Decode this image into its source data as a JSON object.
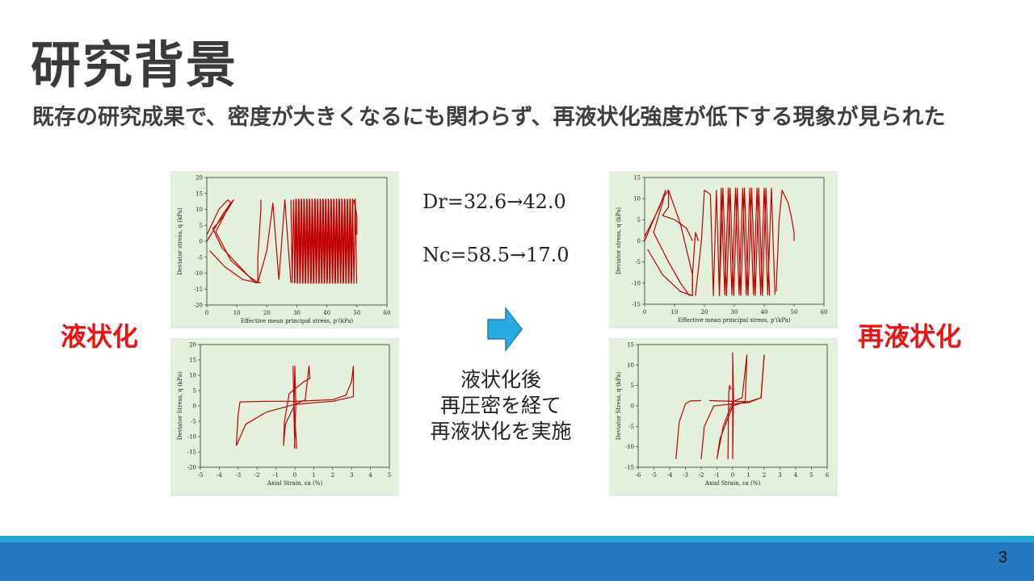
{
  "slide": {
    "title": "研究背景",
    "body": "既存の研究成果で、密度が大きくなるにも関わらず、再液状化強度が低下する現象が見られた",
    "left_label": "液状化",
    "right_label": "再液状化",
    "dr_text": "Dr=32.6→42.0",
    "nc_text": "Nc=58.5→17.0",
    "process_lines": [
      "液状化後",
      "再圧密を経て",
      "再液状化を実施"
    ],
    "page_number": "3",
    "colors": {
      "curve": "#c00000",
      "panel_bg": "#e3f0dc",
      "label_red": "#ee1111",
      "footer": "#2478c0",
      "footer_stripe": "#1ea9d8",
      "arrow": "#29abe2"
    }
  },
  "chart_data": [
    {
      "type": "line",
      "panel": "top-left",
      "xlabel": "Effective mean principal stress, p'(kPa)",
      "ylabel": "Deviator stress, q (kPa)",
      "xlim": [
        0,
        60
      ],
      "ylim": [
        -20,
        20
      ],
      "xticks": [
        "0",
        "10",
        "20",
        "30",
        "40",
        "50",
        "60"
      ],
      "yticks": [
        "20",
        "15",
        "10",
        "5",
        "0",
        "-5",
        "-10",
        "-15",
        "-20"
      ]
    },
    {
      "type": "line",
      "panel": "bottom-left",
      "xlabel": "Axial Strain, εa (%)",
      "ylabel": "Deviator Stress, q (kPa)",
      "xlim": [
        -5,
        5
      ],
      "ylim": [
        -20,
        20
      ],
      "xticks": [
        "-5",
        "-4",
        "-3",
        "-2",
        "-1",
        "0",
        "1",
        "2",
        "3",
        "4",
        "5"
      ],
      "yticks": [
        "20",
        "15",
        "10",
        "5",
        "0",
        "-5",
        "-10",
        "-15",
        "-20"
      ]
    },
    {
      "type": "line",
      "panel": "top-right",
      "xlabel": "Effective mean principal stress, p'(kPa)",
      "ylabel": "Deviator stress, q (kPa)",
      "xlim": [
        0,
        60
      ],
      "ylim": [
        -15,
        15
      ],
      "xticks": [
        "0",
        "10",
        "20",
        "30",
        "40",
        "50",
        "60"
      ],
      "yticks": [
        "15",
        "10",
        "5",
        "0",
        "-5",
        "-10",
        "-15"
      ]
    },
    {
      "type": "line",
      "panel": "bottom-right",
      "xlabel": "Axial Strain, εa (%)",
      "ylabel": "Deviator Stress, q (kPa)",
      "xlim": [
        -6,
        6
      ],
      "ylim": [
        -15,
        15
      ],
      "xticks": [
        "-6",
        "-5",
        "-4",
        "-3",
        "-2",
        "-1",
        "0",
        "1",
        "2",
        "3",
        "4",
        "5",
        "6"
      ],
      "yticks": [
        "15",
        "10",
        "5",
        "0",
        "-5",
        "-10",
        "-15"
      ]
    }
  ]
}
